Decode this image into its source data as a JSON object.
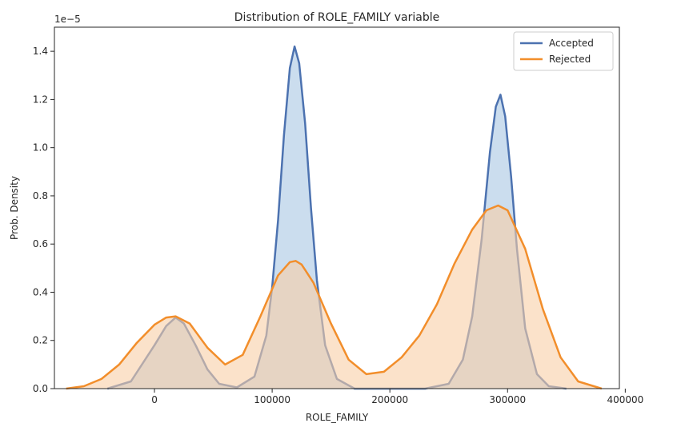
{
  "chart_data": {
    "type": "area",
    "title": "Distribution of ROLE_FAMILY variable",
    "xlabel": "ROLE_FAMILY",
    "ylabel": "Prob. Density",
    "y_offset_text": "1e−5",
    "xlim": [
      -85000,
      395000
    ],
    "ylim": [
      0,
      1.5
    ],
    "x_ticks": [
      0,
      100000,
      200000,
      300000,
      400000
    ],
    "x_tick_labels": [
      "0",
      "100000",
      "200000",
      "300000",
      "400000"
    ],
    "y_ticks": [
      0.0,
      0.2,
      0.4,
      0.6,
      0.8,
      1.0,
      1.2,
      1.4
    ],
    "y_tick_labels": [
      "0.0",
      "0.2",
      "0.4",
      "0.6",
      "0.8",
      "1.0",
      "1.2",
      "1.4"
    ],
    "legend_position": "top-right",
    "grid": false,
    "series": [
      {
        "name": "Accepted",
        "color": "#4c72b0",
        "fill": "#a9c6e3",
        "x": [
          -40000,
          -20000,
          0,
          10000,
          18000,
          25000,
          35000,
          45000,
          55000,
          70000,
          85000,
          95000,
          100000,
          105000,
          110000,
          115000,
          119000,
          123000,
          128000,
          133000,
          138000,
          145000,
          155000,
          170000,
          200000,
          230000,
          250000,
          262000,
          270000,
          278000,
          285000,
          290000,
          294000,
          298000,
          303000,
          308000,
          315000,
          325000,
          335000,
          350000
        ],
        "y": [
          0.0,
          0.03,
          0.18,
          0.26,
          0.295,
          0.27,
          0.18,
          0.08,
          0.02,
          0.005,
          0.05,
          0.22,
          0.42,
          0.7,
          1.05,
          1.33,
          1.42,
          1.35,
          1.1,
          0.75,
          0.45,
          0.18,
          0.04,
          0.0,
          0.0,
          0.0,
          0.02,
          0.12,
          0.3,
          0.62,
          0.98,
          1.17,
          1.22,
          1.13,
          0.88,
          0.58,
          0.25,
          0.06,
          0.01,
          0.0
        ]
      },
      {
        "name": "Rejected",
        "color": "#f28e2b",
        "fill": "#f9cfa6",
        "x": [
          -75000,
          -60000,
          -45000,
          -30000,
          -15000,
          0,
          10000,
          18000,
          30000,
          45000,
          60000,
          75000,
          90000,
          105000,
          115000,
          120000,
          125000,
          135000,
          150000,
          165000,
          180000,
          195000,
          210000,
          225000,
          240000,
          255000,
          270000,
          282000,
          292000,
          300000,
          315000,
          330000,
          345000,
          360000,
          380000
        ],
        "y": [
          0.0,
          0.01,
          0.04,
          0.1,
          0.19,
          0.265,
          0.295,
          0.3,
          0.27,
          0.17,
          0.1,
          0.14,
          0.3,
          0.47,
          0.525,
          0.53,
          0.515,
          0.44,
          0.27,
          0.12,
          0.06,
          0.07,
          0.13,
          0.22,
          0.35,
          0.52,
          0.66,
          0.74,
          0.76,
          0.74,
          0.58,
          0.33,
          0.13,
          0.03,
          0.0
        ]
      }
    ]
  }
}
